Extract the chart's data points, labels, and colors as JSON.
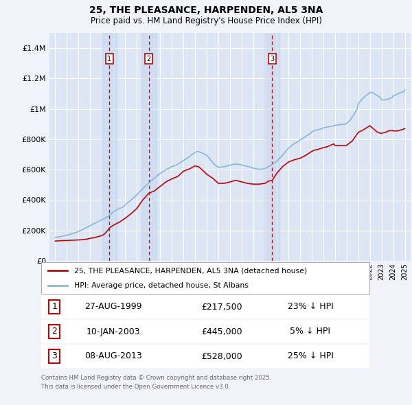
{
  "title": "25, THE PLEASANCE, HARPENDEN, AL5 3NA",
  "subtitle": "Price paid vs. HM Land Registry's House Price Index (HPI)",
  "legend_label_red": "25, THE PLEASANCE, HARPENDEN, AL5 3NA (detached house)",
  "legend_label_blue": "HPI: Average price, detached house, St Albans",
  "footnote": "Contains HM Land Registry data © Crown copyright and database right 2025.\nThis data is licensed under the Open Government Licence v3.0.",
  "transactions": [
    {
      "num": 1,
      "date": "27-AUG-1999",
      "price": 217500,
      "pct": "23%",
      "dir": "↓"
    },
    {
      "num": 2,
      "date": "10-JAN-2003",
      "price": 445000,
      "pct": "5%",
      "dir": "↓"
    },
    {
      "num": 3,
      "date": "08-AUG-2013",
      "price": 528000,
      "pct": "25%",
      "dir": "↓"
    }
  ],
  "transaction_years": [
    1999.65,
    2003.03,
    2013.6
  ],
  "red_line_years": [
    1995.0,
    1995.3,
    1995.6,
    1995.9,
    1996.2,
    1996.5,
    1996.8,
    1997.1,
    1997.4,
    1997.7,
    1998.0,
    1998.3,
    1998.6,
    1998.9,
    1999.2,
    1999.5,
    1999.65,
    2000.0,
    2000.5,
    2001.0,
    2001.5,
    2002.0,
    2002.5,
    2003.03,
    2003.5,
    2004.0,
    2004.5,
    2005.0,
    2005.5,
    2006.0,
    2006.5,
    2007.0,
    2007.3,
    2007.6,
    2008.0,
    2008.5,
    2009.0,
    2009.5,
    2010.0,
    2010.5,
    2011.0,
    2011.5,
    2012.0,
    2012.5,
    2013.0,
    2013.3,
    2013.6,
    2014.0,
    2014.5,
    2015.0,
    2015.5,
    2016.0,
    2016.5,
    2017.0,
    2017.3,
    2017.6,
    2018.0,
    2018.3,
    2018.6,
    2018.9,
    2019.0,
    2019.5,
    2020.0,
    2020.5,
    2021.0,
    2021.5,
    2022.0,
    2022.3,
    2022.6,
    2022.9,
    2023.0,
    2023.3,
    2023.6,
    2023.9,
    2024.0,
    2024.3,
    2024.6,
    2025.0
  ],
  "red_line_values": [
    130000,
    132000,
    133000,
    134000,
    135000,
    136000,
    137000,
    138000,
    140000,
    143000,
    148000,
    153000,
    158000,
    164000,
    175000,
    200000,
    217500,
    235000,
    255000,
    280000,
    310000,
    345000,
    400000,
    445000,
    460000,
    490000,
    520000,
    540000,
    555000,
    590000,
    605000,
    625000,
    620000,
    600000,
    570000,
    545000,
    510000,
    510000,
    520000,
    530000,
    520000,
    510000,
    505000,
    505000,
    510000,
    525000,
    528000,
    575000,
    620000,
    650000,
    665000,
    675000,
    695000,
    720000,
    730000,
    735000,
    745000,
    750000,
    760000,
    770000,
    760000,
    760000,
    760000,
    790000,
    845000,
    865000,
    890000,
    870000,
    850000,
    840000,
    840000,
    845000,
    855000,
    860000,
    855000,
    855000,
    860000,
    870000
  ],
  "blue_line_years": [
    1995.0,
    1995.3,
    1995.6,
    1995.9,
    1996.2,
    1996.5,
    1996.8,
    1997.1,
    1997.4,
    1997.7,
    1998.0,
    1998.3,
    1998.6,
    1998.9,
    1999.2,
    1999.5,
    1999.8,
    2000.0,
    2000.3,
    2000.6,
    2000.9,
    2001.0,
    2001.5,
    2002.0,
    2002.5,
    2003.0,
    2003.5,
    2004.0,
    2004.5,
    2005.0,
    2005.5,
    2006.0,
    2006.5,
    2007.0,
    2007.3,
    2007.6,
    2008.0,
    2008.3,
    2008.6,
    2008.9,
    2009.0,
    2009.5,
    2010.0,
    2010.5,
    2011.0,
    2011.5,
    2012.0,
    2012.5,
    2013.0,
    2013.5,
    2014.0,
    2014.5,
    2015.0,
    2015.3,
    2015.6,
    2015.9,
    2016.0,
    2016.3,
    2016.6,
    2016.9,
    2017.0,
    2017.3,
    2017.6,
    2017.9,
    2018.0,
    2018.3,
    2018.6,
    2018.9,
    2019.0,
    2019.3,
    2019.6,
    2019.9,
    2020.0,
    2020.3,
    2020.6,
    2020.9,
    2021.0,
    2021.3,
    2021.6,
    2021.9,
    2022.0,
    2022.3,
    2022.6,
    2022.9,
    2023.0,
    2023.3,
    2023.6,
    2023.9,
    2024.0,
    2024.3,
    2024.6,
    2024.9,
    2025.0
  ],
  "blue_line_values": [
    155000,
    158000,
    162000,
    167000,
    173000,
    180000,
    188000,
    197000,
    208000,
    220000,
    232000,
    244000,
    255000,
    267000,
    278000,
    293000,
    308000,
    325000,
    338000,
    348000,
    358000,
    370000,
    400000,
    435000,
    475000,
    510000,
    545000,
    575000,
    600000,
    620000,
    635000,
    660000,
    685000,
    715000,
    720000,
    710000,
    695000,
    668000,
    640000,
    620000,
    615000,
    620000,
    630000,
    638000,
    632000,
    622000,
    610000,
    602000,
    608000,
    628000,
    655000,
    695000,
    740000,
    760000,
    775000,
    788000,
    795000,
    808000,
    825000,
    838000,
    848000,
    858000,
    865000,
    870000,
    875000,
    880000,
    885000,
    888000,
    892000,
    895000,
    898000,
    900000,
    905000,
    925000,
    960000,
    998000,
    1035000,
    1060000,
    1085000,
    1100000,
    1110000,
    1105000,
    1090000,
    1075000,
    1060000,
    1060000,
    1065000,
    1075000,
    1085000,
    1095000,
    1105000,
    1115000,
    1125000
  ],
  "ylim": [
    0,
    1500000
  ],
  "yticks": [
    0,
    200000,
    400000,
    600000,
    800000,
    1000000,
    1200000,
    1400000
  ],
  "ytick_labels": [
    "£0",
    "£200K",
    "£400K",
    "£600K",
    "£800K",
    "£1M",
    "£1.2M",
    "£1.4M"
  ],
  "xlim_start": 1994.5,
  "xlim_end": 2025.5,
  "background_color": "#f0f4fa",
  "plot_bg_color": "#dce6f4",
  "grid_color": "#ffffff",
  "red_color": "#cc0000",
  "blue_color": "#85b8d8",
  "vline_color": "#cc0000",
  "box_edge_color": "#cc0000",
  "shade_color": "#c8d8ee",
  "shade_alpha": 0.6
}
